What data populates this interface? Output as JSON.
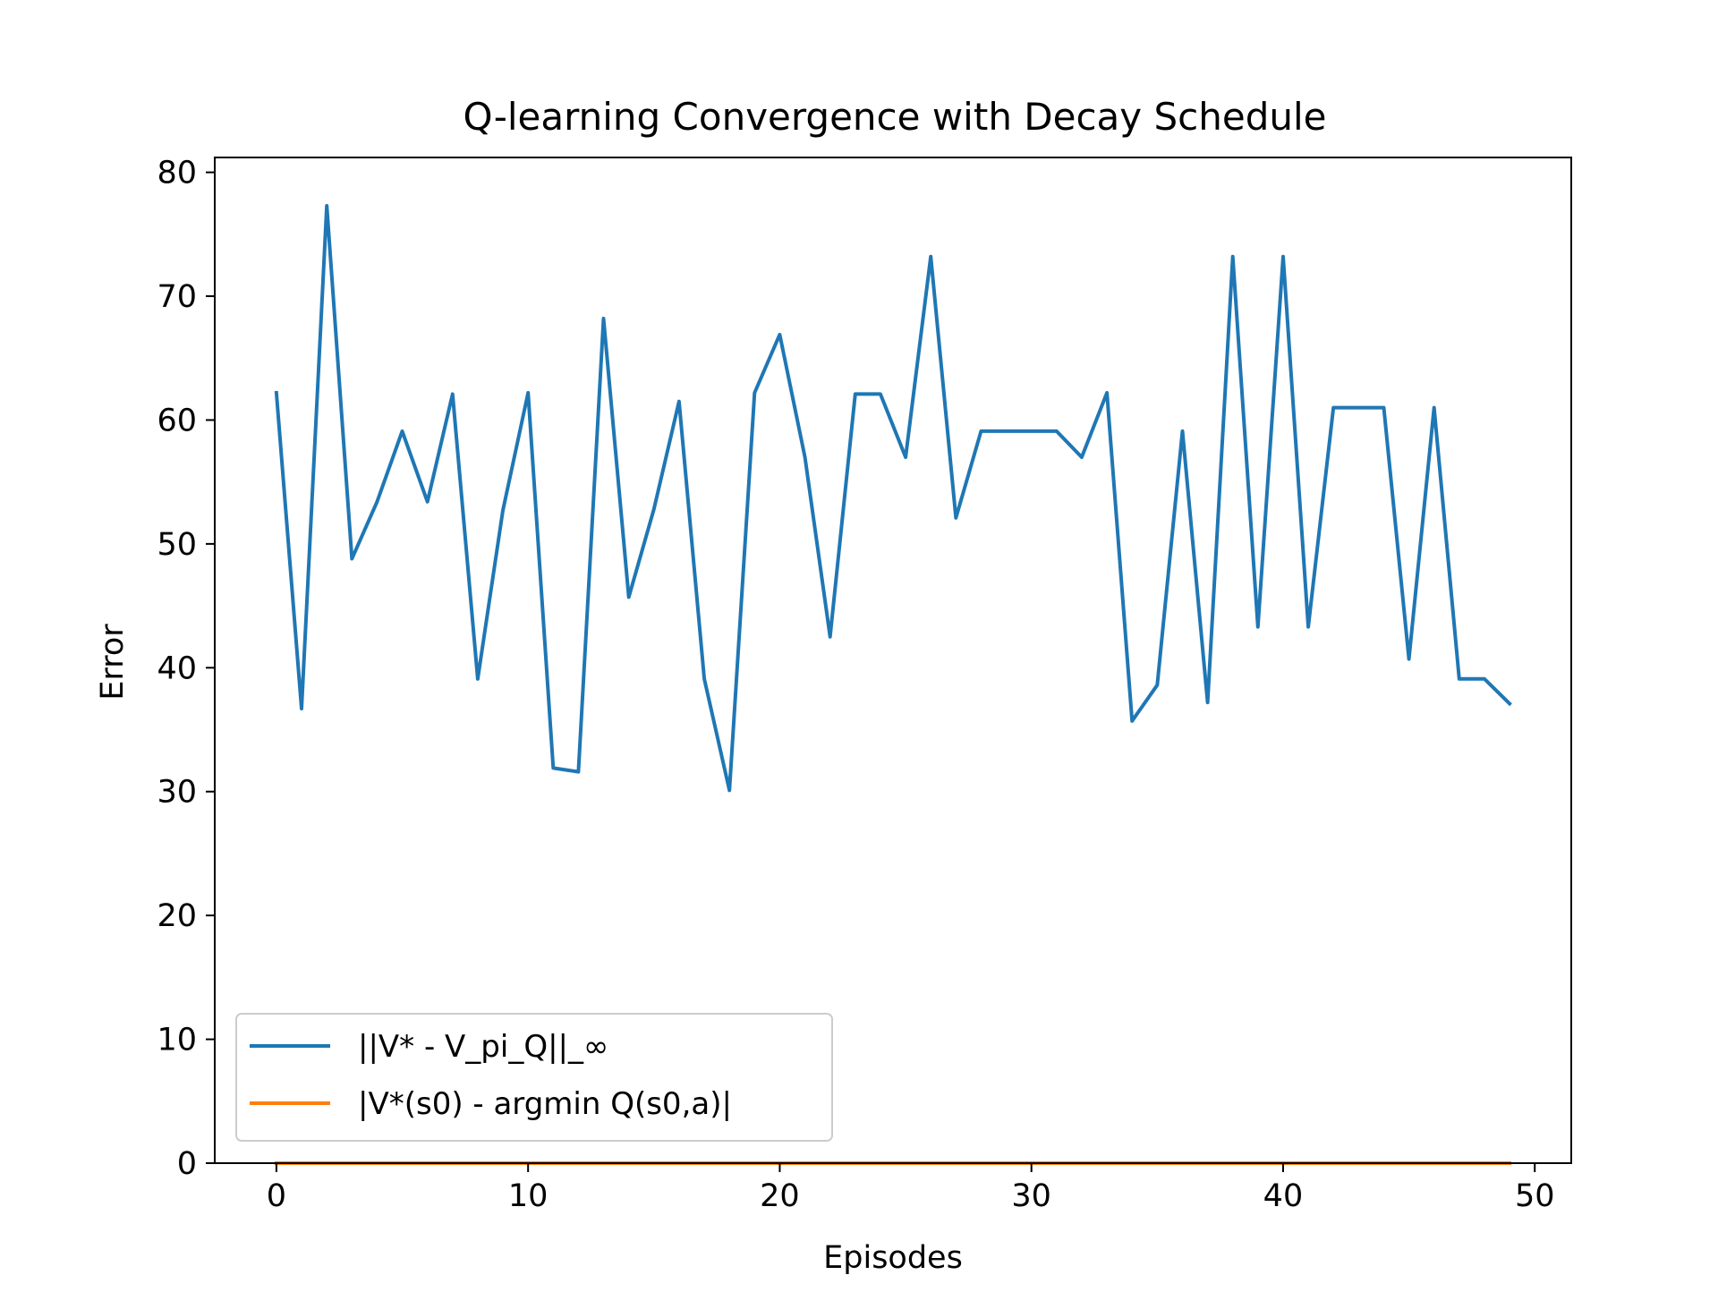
{
  "chart_data": {
    "type": "line",
    "title": "Q-learning Convergence with Decay Schedule",
    "xlabel": "Episodes",
    "ylabel": "Error",
    "xlim": [
      -2.45,
      51.45
    ],
    "ylim": [
      0,
      81.2
    ],
    "xticks": [
      0,
      10,
      20,
      30,
      40,
      50
    ],
    "yticks": [
      0,
      10,
      20,
      30,
      40,
      50,
      60,
      70,
      80
    ],
    "grid": false,
    "legend_position": "lower-left",
    "x": [
      0,
      1,
      2,
      3,
      4,
      5,
      6,
      7,
      8,
      9,
      10,
      11,
      12,
      13,
      14,
      15,
      16,
      17,
      18,
      19,
      20,
      21,
      22,
      23,
      24,
      25,
      26,
      27,
      28,
      29,
      30,
      31,
      32,
      33,
      34,
      35,
      36,
      37,
      38,
      39,
      40,
      41,
      42,
      43,
      44,
      45,
      46,
      47,
      48,
      49
    ],
    "series": [
      {
        "name": "||V* - V_pi_Q||_∞",
        "color": "#1f77b4",
        "values": [
          62.2,
          36.7,
          77.3,
          48.8,
          53.4,
          59.1,
          53.4,
          62.1,
          39.1,
          52.7,
          62.2,
          31.9,
          31.6,
          68.2,
          45.7,
          52.8,
          61.5,
          39.1,
          30.1,
          62.2,
          66.9,
          57.0,
          42.5,
          62.1,
          62.1,
          57.0,
          73.2,
          52.1,
          59.1,
          59.1,
          59.1,
          59.1,
          57.0,
          62.2,
          35.7,
          38.6,
          59.1,
          37.2,
          73.2,
          43.3,
          73.2,
          43.3,
          61.0,
          61.0,
          61.0,
          40.7,
          61.0,
          39.1,
          39.1,
          37.1
        ]
      },
      {
        "name": "|V*(s0) - argmin Q(s0,a)|",
        "color": "#ff7f0e",
        "values": [
          0,
          0,
          0,
          0,
          0,
          0,
          0,
          0,
          0,
          0,
          0,
          0,
          0,
          0,
          0,
          0,
          0,
          0,
          0,
          0,
          0,
          0,
          0,
          0,
          0,
          0,
          0,
          0,
          0,
          0,
          0,
          0,
          0,
          0,
          0,
          0,
          0,
          0,
          0,
          0,
          0,
          0,
          0,
          0,
          0,
          0,
          0,
          0,
          0,
          0
        ]
      }
    ]
  }
}
